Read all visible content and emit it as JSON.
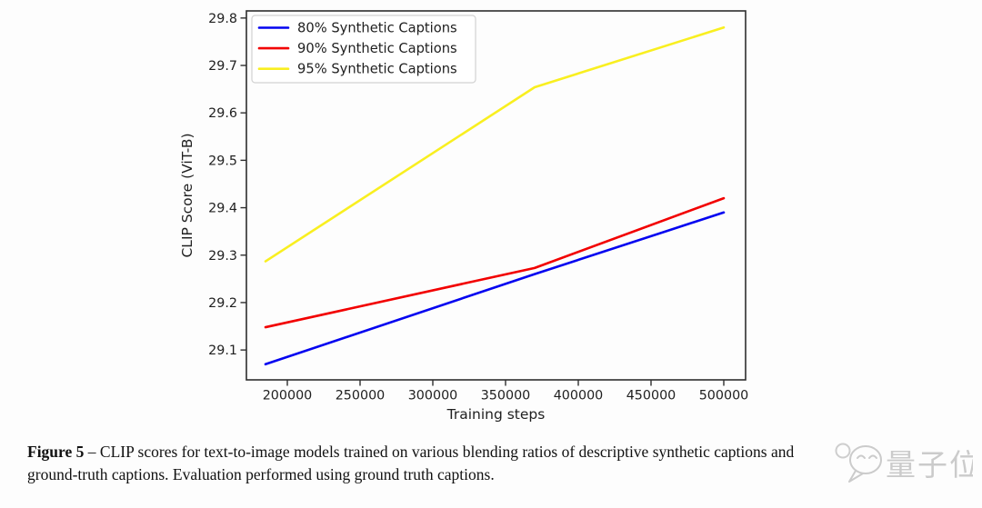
{
  "chart_data": {
    "type": "line",
    "title": "",
    "xlabel": "Training steps",
    "ylabel": "CLIP Score (ViT-B)",
    "x": [
      185000,
      370000,
      500000
    ],
    "series": [
      {
        "name": "80% Synthetic Captions",
        "color": "#0404f0",
        "values": [
          29.07,
          29.26,
          29.39
        ]
      },
      {
        "name": "90% Synthetic Captions",
        "color": "#f20000",
        "values": [
          29.148,
          29.273,
          29.42
        ]
      },
      {
        "name": "95% Synthetic Captions",
        "color": "#f9ef20",
        "values": [
          29.287,
          29.654,
          29.78
        ]
      }
    ],
    "xticks": [
      200000,
      250000,
      300000,
      350000,
      400000,
      450000,
      500000
    ],
    "xtick_labels": [
      "200000",
      "250000",
      "300000",
      "350000",
      "400000",
      "450000",
      "500000"
    ],
    "yticks": [
      29.1,
      29.2,
      29.3,
      29.4,
      29.5,
      29.6,
      29.7,
      29.8
    ],
    "ytick_labels": [
      "29.1",
      "29.2",
      "29.3",
      "29.4",
      "29.5",
      "29.6",
      "29.7",
      "29.8"
    ],
    "xlim": [
      171875,
      515000
    ],
    "ylim": [
      29.037,
      29.815
    ],
    "grid": false,
    "legend_position": "upper left",
    "axis_color": "#2e2e2e",
    "text_color": "#1f1f1f",
    "legend_border_color": "#d2d2d2"
  },
  "caption": {
    "label": "Figure 5",
    "line1_rest": " – CLIP scores for text-to-image models trained on various blending ratios of descriptive synthetic captions and",
    "line2": "ground-truth captions. Evaluation performed using ground truth captions."
  },
  "watermark": {
    "text": "量子位",
    "color": "#c3c3c3"
  }
}
